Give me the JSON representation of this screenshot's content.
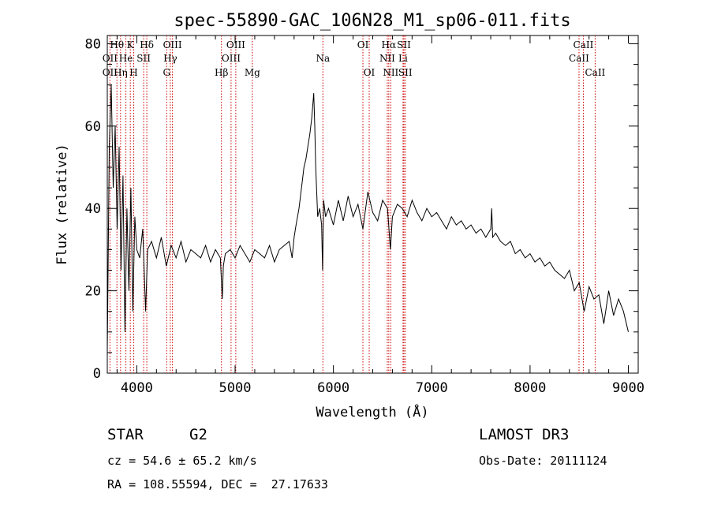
{
  "chart_data": {
    "type": "line",
    "title": "spec-55890-GAC_106N28_M1_sp06-011.fits",
    "xlabel": "Wavelength (Å)",
    "ylabel": "Flux (relative)",
    "xlim": [
      3700,
      9100
    ],
    "ylim": [
      0,
      82
    ],
    "xticks": [
      4000,
      5000,
      6000,
      7000,
      8000,
      9000
    ],
    "yticks": [
      0,
      20,
      40,
      60,
      80
    ],
    "grid": false,
    "line_color": "#000000",
    "marker_color": "#cc0000",
    "spectral_lines": [
      {
        "label": "OII",
        "wavelength": 3727,
        "row": 2
      },
      {
        "label": "Hθ",
        "wavelength": 3798,
        "row": 1
      },
      {
        "label": "OII",
        "wavelength": 3727,
        "row": 3
      },
      {
        "label": "Hη",
        "wavelength": 3835,
        "row": 3
      },
      {
        "label": "He",
        "wavelength": 3889,
        "row": 2
      },
      {
        "label": "K",
        "wavelength": 3934,
        "row": 1
      },
      {
        "label": "H",
        "wavelength": 3969,
        "row": 3
      },
      {
        "label": "SII",
        "wavelength": 4070,
        "row": 2
      },
      {
        "label": "Hδ",
        "wavelength": 4102,
        "row": 1
      },
      {
        "label": "OIII",
        "wavelength": 4363,
        "row": 1
      },
      {
        "label": "Hγ",
        "wavelength": 4341,
        "row": 2
      },
      {
        "label": "G",
        "wavelength": 4304,
        "row": 3
      },
      {
        "label": "Hβ",
        "wavelength": 4861,
        "row": 3
      },
      {
        "label": "OIII",
        "wavelength": 5007,
        "row": 1
      },
      {
        "label": "OIII",
        "wavelength": 4959,
        "row": 2
      },
      {
        "label": "Mg",
        "wavelength": 5175,
        "row": 3
      },
      {
        "label": "Na",
        "wavelength": 5893,
        "row": 2
      },
      {
        "label": "OI",
        "wavelength": 6300,
        "row": 1
      },
      {
        "label": "OI",
        "wavelength": 6364,
        "row": 3
      },
      {
        "label": "Hα",
        "wavelength": 6563,
        "row": 1
      },
      {
        "label": "NII",
        "wavelength": 6548,
        "row": 2
      },
      {
        "label": "NII",
        "wavelength": 6583,
        "row": 3
      },
      {
        "label": "SII",
        "wavelength": 6717,
        "row": 1
      },
      {
        "label": "Li",
        "wavelength": 6708,
        "row": 2
      },
      {
        "label": "SII",
        "wavelength": 6731,
        "row": 3
      },
      {
        "label": "CaII",
        "wavelength": 8542,
        "row": 1
      },
      {
        "label": "CaII",
        "wavelength": 8498,
        "row": 2
      },
      {
        "label": "CaII",
        "wavelength": 8662,
        "row": 3
      }
    ],
    "series": [
      {
        "x": [
          3700,
          3720,
          3740,
          3760,
          3780,
          3800,
          3820,
          3840,
          3860,
          3880,
          3900,
          3920,
          3940,
          3960,
          3980,
          4000,
          4030,
          4060,
          4090,
          4110,
          4150,
          4200,
          4250,
          4300,
          4350,
          4400,
          4450,
          4500,
          4550,
          4600,
          4650,
          4700,
          4750,
          4800,
          4850,
          4870,
          4880,
          4900,
          4950,
          5000,
          5050,
          5100,
          5150,
          5200,
          5250,
          5300,
          5350,
          5400,
          5450,
          5500,
          5550,
          5580,
          5600,
          5620,
          5650,
          5680,
          5700,
          5720,
          5740,
          5760,
          5780,
          5800,
          5810,
          5820,
          5840,
          5860,
          5880,
          5890,
          5900,
          5920,
          5950,
          6000,
          6050,
          6100,
          6150,
          6200,
          6250,
          6300,
          6350,
          6400,
          6450,
          6500,
          6550,
          6580,
          6600,
          6650,
          6700,
          6750,
          6800,
          6850,
          6900,
          6950,
          7000,
          7050,
          7100,
          7150,
          7200,
          7250,
          7300,
          7350,
          7400,
          7450,
          7500,
          7550,
          7600,
          7610,
          7620,
          7650,
          7700,
          7750,
          7800,
          7850,
          7900,
          7950,
          8000,
          8050,
          8100,
          8150,
          8200,
          8250,
          8300,
          8350,
          8400,
          8450,
          8500,
          8550,
          8600,
          8650,
          8700,
          8750,
          8800,
          8850,
          8900,
          8950,
          9000
        ],
        "y": [
          5,
          55,
          70,
          45,
          60,
          35,
          55,
          25,
          48,
          10,
          40,
          20,
          45,
          15,
          38,
          30,
          28,
          35,
          15,
          30,
          32,
          28,
          33,
          26,
          31,
          28,
          32,
          27,
          30,
          29,
          28,
          31,
          27,
          30,
          28,
          18,
          26,
          29,
          30,
          28,
          31,
          29,
          27,
          30,
          29,
          28,
          31,
          27,
          30,
          31,
          32,
          28,
          33,
          36,
          40,
          46,
          50,
          52,
          55,
          58,
          62,
          68,
          60,
          50,
          38,
          40,
          36,
          25,
          42,
          38,
          40,
          36,
          42,
          37,
          43,
          38,
          41,
          35,
          44,
          39,
          37,
          42,
          40,
          30,
          38,
          41,
          40,
          38,
          42,
          39,
          37,
          40,
          38,
          39,
          37,
          35,
          38,
          36,
          37,
          35,
          36,
          34,
          35,
          33,
          35,
          40,
          33,
          34,
          32,
          31,
          32,
          29,
          30,
          28,
          29,
          27,
          28,
          26,
          27,
          25,
          24,
          23,
          25,
          20,
          22,
          15,
          21,
          18,
          19,
          12,
          20,
          14,
          18,
          15,
          10
        ]
      }
    ]
  },
  "info": {
    "class": "STAR",
    "subclass": "G2",
    "survey": "LAMOST DR3",
    "cz": "cz = 54.6 ± 65.2 km/s",
    "obs_date": "Obs-Date: 20111124",
    "radec": "RA = 108.55594, DEC =  27.17633"
  }
}
